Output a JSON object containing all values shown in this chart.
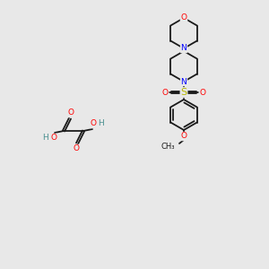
{
  "bg_color": "#e8e8e8",
  "bond_color": "#1a1a1a",
  "bond_lw": 1.3,
  "atom_colors": {
    "O": "#ff0000",
    "N": "#0000ff",
    "S": "#b8b800",
    "H": "#4a9090",
    "C": "#1a1a1a"
  },
  "font_size": 6.5
}
